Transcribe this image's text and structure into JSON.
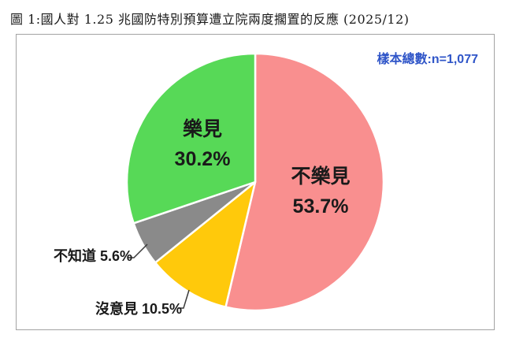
{
  "title": "圖 1:國人對 1.25 兆國防特別預算遭立院兩度擱置的反應 (2025/12)",
  "sample_note": "樣本總數:n=1,077",
  "colors": {
    "sample_note_text": "#2F55C8",
    "frame_border": "#A3A3A3",
    "slice_stroke": "#FFFFFF",
    "leader_line": "#3A3A3A"
  },
  "chart_data": {
    "type": "pie",
    "title": "圖 1:國人對 1.25 兆國防特別預算遭立院兩度擱置的反應 (2025/12)",
    "annotation": "樣本總數:n=1,077",
    "sample_size": 1077,
    "start_angle_deg": 0,
    "direction": "clockwise",
    "legend_position": "none",
    "slices": [
      {
        "label": "不樂見",
        "value": 53.7,
        "display": "53.7%",
        "color": "#F98F8F",
        "label_position": "inside"
      },
      {
        "label": "沒意見",
        "value": 10.5,
        "display": "10.5%",
        "color": "#FFC90B",
        "label_position": "outside"
      },
      {
        "label": "不知道",
        "value": 5.6,
        "display": "5.6%",
        "color": "#8A8A8A",
        "label_position": "outside"
      },
      {
        "label": "樂見",
        "value": 30.2,
        "display": "30.2%",
        "color": "#57D957",
        "label_position": "inside"
      }
    ]
  }
}
